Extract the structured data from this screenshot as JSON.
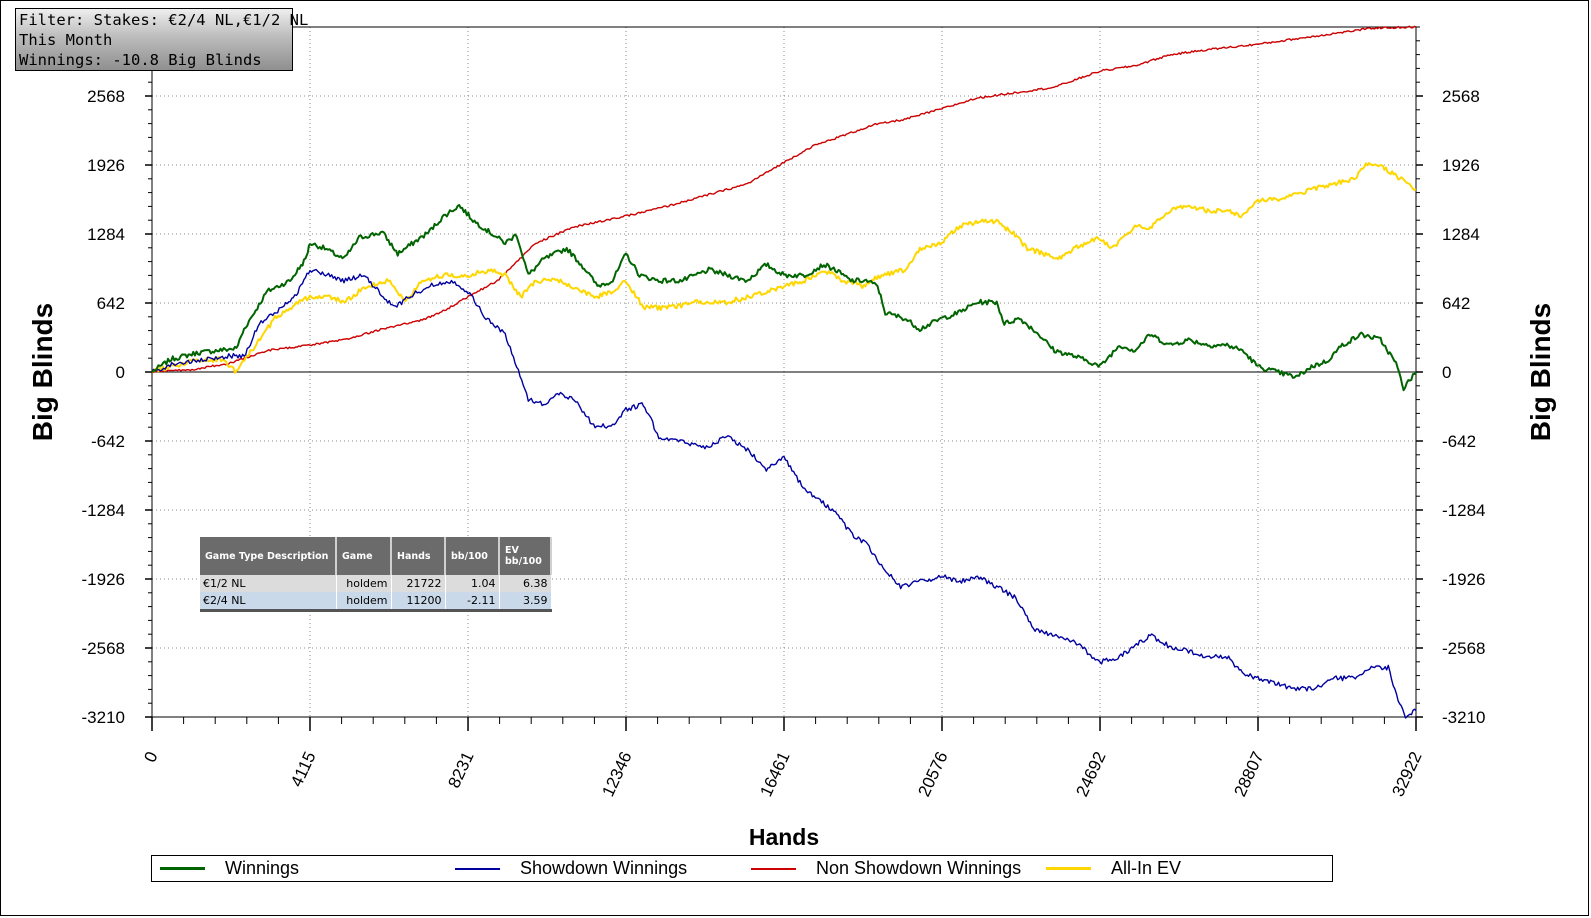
{
  "filter": {
    "line1": "Filter: Stakes: €2/4 NL,€1/2 NL",
    "line2": "This Month",
    "line3": "Winnings: -10.8 Big Blinds"
  },
  "chart_data": {
    "type": "line",
    "xlabel": "Hands",
    "ylabel": "Big Blinds",
    "xlim": [
      0,
      32922
    ],
    "ylim": [
      -3210,
      3210
    ],
    "xticks": [
      "0",
      "4115",
      "8231",
      "12346",
      "16461",
      "20576",
      "24692",
      "28807",
      "32922"
    ],
    "yticks": [
      "2568",
      "1926",
      "1284",
      "642",
      "0",
      "-642",
      "-1284",
      "-1926",
      "-2568",
      "-3210"
    ],
    "grid": true,
    "legend_position": "bottom",
    "series": [
      {
        "name": "Winnings",
        "color": "#006400",
        "points": [
          [
            0,
            0
          ],
          [
            500,
            120
          ],
          [
            1200,
            180
          ],
          [
            2200,
            220
          ],
          [
            2400,
            400
          ],
          [
            3000,
            750
          ],
          [
            3600,
            850
          ],
          [
            4000,
            1050
          ],
          [
            4115,
            1200
          ],
          [
            4500,
            1150
          ],
          [
            5000,
            1050
          ],
          [
            5400,
            1250
          ],
          [
            6000,
            1300
          ],
          [
            6400,
            1100
          ],
          [
            6800,
            1200
          ],
          [
            7200,
            1300
          ],
          [
            7600,
            1450
          ],
          [
            8000,
            1550
          ],
          [
            8400,
            1400
          ],
          [
            8800,
            1300
          ],
          [
            9200,
            1200
          ],
          [
            9500,
            1280
          ],
          [
            9800,
            900
          ],
          [
            10200,
            1050
          ],
          [
            10800,
            1150
          ],
          [
            11300,
            950
          ],
          [
            11600,
            800
          ],
          [
            12000,
            850
          ],
          [
            12346,
            1100
          ],
          [
            12700,
            900
          ],
          [
            13200,
            850
          ],
          [
            13800,
            850
          ],
          [
            14500,
            950
          ],
          [
            15000,
            900
          ],
          [
            15500,
            850
          ],
          [
            16000,
            1000
          ],
          [
            16461,
            900
          ],
          [
            17000,
            900
          ],
          [
            17500,
            1000
          ],
          [
            17800,
            950
          ],
          [
            18200,
            850
          ],
          [
            18600,
            850
          ],
          [
            18900,
            800
          ],
          [
            19100,
            550
          ],
          [
            19600,
            500
          ],
          [
            20000,
            400
          ],
          [
            20576,
            500
          ],
          [
            21000,
            550
          ],
          [
            21500,
            650
          ],
          [
            22000,
            650
          ],
          [
            22200,
            450
          ],
          [
            22600,
            500
          ],
          [
            23100,
            350
          ],
          [
            23500,
            200
          ],
          [
            24000,
            150
          ],
          [
            24400,
            100
          ],
          [
            24692,
            50
          ],
          [
            25200,
            250
          ],
          [
            25600,
            200
          ],
          [
            26000,
            350
          ],
          [
            26500,
            250
          ],
          [
            27000,
            300
          ],
          [
            27500,
            250
          ],
          [
            28000,
            250
          ],
          [
            28400,
            200
          ],
          [
            28807,
            50
          ],
          [
            29300,
            0
          ],
          [
            29800,
            -50
          ],
          [
            30200,
            50
          ],
          [
            30600,
            100
          ],
          [
            31000,
            250
          ],
          [
            31500,
            350
          ],
          [
            32000,
            300
          ],
          [
            32400,
            80
          ],
          [
            32600,
            -150
          ],
          [
            32922,
            0
          ]
        ]
      },
      {
        "name": "Showdown Winnings",
        "color": "#0000a0",
        "points": [
          [
            0,
            0
          ],
          [
            600,
            80
          ],
          [
            1200,
            100
          ],
          [
            2000,
            150
          ],
          [
            2400,
            150
          ],
          [
            2800,
            450
          ],
          [
            3400,
            600
          ],
          [
            3800,
            750
          ],
          [
            4115,
            950
          ],
          [
            4600,
            900
          ],
          [
            5000,
            850
          ],
          [
            5500,
            900
          ],
          [
            5900,
            750
          ],
          [
            6300,
            600
          ],
          [
            6700,
            700
          ],
          [
            7200,
            800
          ],
          [
            7800,
            850
          ],
          [
            8231,
            750
          ],
          [
            8700,
            500
          ],
          [
            9200,
            350
          ],
          [
            9500,
            50
          ],
          [
            9800,
            -250
          ],
          [
            10200,
            -300
          ],
          [
            10600,
            -200
          ],
          [
            11000,
            -250
          ],
          [
            11500,
            -500
          ],
          [
            12000,
            -500
          ],
          [
            12346,
            -350
          ],
          [
            12800,
            -300
          ],
          [
            13200,
            -600
          ],
          [
            13800,
            -650
          ],
          [
            14400,
            -700
          ],
          [
            15000,
            -600
          ],
          [
            15600,
            -750
          ],
          [
            16000,
            -900
          ],
          [
            16461,
            -800
          ],
          [
            17000,
            -1100
          ],
          [
            17400,
            -1200
          ],
          [
            17800,
            -1300
          ],
          [
            18200,
            -1500
          ],
          [
            18600,
            -1600
          ],
          [
            19000,
            -1800
          ],
          [
            19500,
            -2000
          ],
          [
            20000,
            -1950
          ],
          [
            20576,
            -1900
          ],
          [
            21000,
            -1950
          ],
          [
            21500,
            -1900
          ],
          [
            22000,
            -2000
          ],
          [
            22500,
            -2100
          ],
          [
            23000,
            -2400
          ],
          [
            23500,
            -2450
          ],
          [
            24000,
            -2500
          ],
          [
            24692,
            -2700
          ],
          [
            25200,
            -2650
          ],
          [
            25600,
            -2550
          ],
          [
            26000,
            -2450
          ],
          [
            26500,
            -2550
          ],
          [
            27000,
            -2600
          ],
          [
            27500,
            -2650
          ],
          [
            28000,
            -2650
          ],
          [
            28400,
            -2800
          ],
          [
            28807,
            -2850
          ],
          [
            29300,
            -2900
          ],
          [
            29800,
            -2950
          ],
          [
            30200,
            -2950
          ],
          [
            30800,
            -2850
          ],
          [
            31300,
            -2850
          ],
          [
            31800,
            -2750
          ],
          [
            32200,
            -2750
          ],
          [
            32500,
            -3100
          ],
          [
            32650,
            -3200
          ],
          [
            32922,
            -3150
          ]
        ]
      },
      {
        "name": "Non Showdown Winnings",
        "color": "#cc0000",
        "points": [
          [
            0,
            0
          ],
          [
            1000,
            20
          ],
          [
            2000,
            80
          ],
          [
            3000,
            200
          ],
          [
            4115,
            250
          ],
          [
            5000,
            300
          ],
          [
            6000,
            400
          ],
          [
            7000,
            480
          ],
          [
            7500,
            550
          ],
          [
            8231,
            700
          ],
          [
            9000,
            850
          ],
          [
            10000,
            1200
          ],
          [
            11000,
            1350
          ],
          [
            12346,
            1450
          ],
          [
            13500,
            1550
          ],
          [
            14500,
            1650
          ],
          [
            15500,
            1750
          ],
          [
            16461,
            1950
          ],
          [
            17200,
            2100
          ],
          [
            18000,
            2200
          ],
          [
            18800,
            2300
          ],
          [
            19600,
            2350
          ],
          [
            20576,
            2450
          ],
          [
            21500,
            2550
          ],
          [
            22500,
            2600
          ],
          [
            23500,
            2650
          ],
          [
            24692,
            2800
          ],
          [
            25600,
            2850
          ],
          [
            26500,
            2950
          ],
          [
            27500,
            3000
          ],
          [
            28807,
            3050
          ],
          [
            29800,
            3100
          ],
          [
            30800,
            3150
          ],
          [
            31800,
            3200
          ],
          [
            32922,
            3210
          ]
        ]
      },
      {
        "name": "All-In EV",
        "color": "#ffd700",
        "points": [
          [
            0,
            0
          ],
          [
            1000,
            100
          ],
          [
            1800,
            120
          ],
          [
            2200,
            0
          ],
          [
            2600,
            200
          ],
          [
            3200,
            500
          ],
          [
            3800,
            650
          ],
          [
            4115,
            700
          ],
          [
            4600,
            700
          ],
          [
            5000,
            650
          ],
          [
            5600,
            800
          ],
          [
            6200,
            850
          ],
          [
            6600,
            650
          ],
          [
            7000,
            850
          ],
          [
            7600,
            900
          ],
          [
            8231,
            900
          ],
          [
            8800,
            950
          ],
          [
            9200,
            900
          ],
          [
            9600,
            700
          ],
          [
            10000,
            850
          ],
          [
            10600,
            850
          ],
          [
            11200,
            750
          ],
          [
            11600,
            700
          ],
          [
            12000,
            750
          ],
          [
            12346,
            850
          ],
          [
            12800,
            600
          ],
          [
            13500,
            600
          ],
          [
            14200,
            650
          ],
          [
            15000,
            650
          ],
          [
            15500,
            700
          ],
          [
            16000,
            750
          ],
          [
            16461,
            800
          ],
          [
            17000,
            850
          ],
          [
            17500,
            950
          ],
          [
            18000,
            850
          ],
          [
            18500,
            800
          ],
          [
            19000,
            900
          ],
          [
            19600,
            950
          ],
          [
            20000,
            1150
          ],
          [
            20576,
            1200
          ],
          [
            21000,
            1350
          ],
          [
            21500,
            1400
          ],
          [
            22000,
            1400
          ],
          [
            22400,
            1300
          ],
          [
            22800,
            1150
          ],
          [
            23200,
            1100
          ],
          [
            23600,
            1050
          ],
          [
            24000,
            1150
          ],
          [
            24692,
            1250
          ],
          [
            25000,
            1150
          ],
          [
            25600,
            1350
          ],
          [
            26000,
            1350
          ],
          [
            26500,
            1500
          ],
          [
            27000,
            1550
          ],
          [
            27500,
            1500
          ],
          [
            28000,
            1500
          ],
          [
            28400,
            1450
          ],
          [
            28807,
            1600
          ],
          [
            29300,
            1600
          ],
          [
            29800,
            1650
          ],
          [
            30200,
            1700
          ],
          [
            30800,
            1750
          ],
          [
            31300,
            1800
          ],
          [
            31700,
            1950
          ],
          [
            32100,
            1900
          ],
          [
            32500,
            1800
          ],
          [
            32922,
            1700
          ]
        ]
      }
    ]
  },
  "stats_table": {
    "headers": {
      "game_type": "Game Type Description",
      "game": "Game",
      "hands": "Hands",
      "bb100": "bb/100",
      "ev_line1": "EV",
      "ev_line2": "bb/100"
    },
    "rows": [
      {
        "game_type": "€1/2 NL",
        "game": "holdem",
        "hands": "21722",
        "bb100": "1.04",
        "ev": "6.38"
      },
      {
        "game_type": "€2/4 NL",
        "game": "holdem",
        "hands": "11200",
        "bb100": "-2.11",
        "ev": "3.59"
      }
    ]
  }
}
